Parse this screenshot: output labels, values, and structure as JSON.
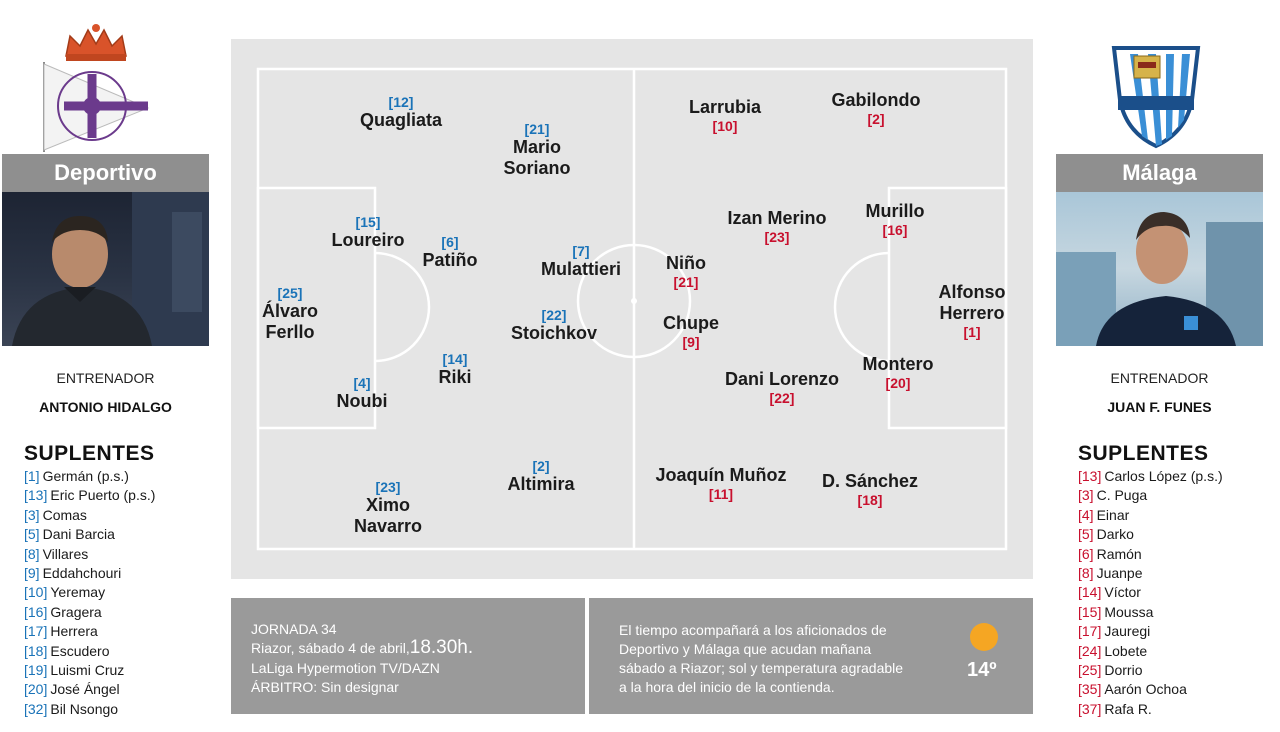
{
  "home": {
    "name": "Deportivo",
    "coach_label": "ENTRENADOR",
    "coach": "ANTONIO HIDALGO",
    "subs_title": "SUPLENTES",
    "subs": [
      {
        "num": "[1]",
        "name": "Germán (p.s.)"
      },
      {
        "num": "[13]",
        "name": "Eric Puerto (p.s.)"
      },
      {
        "num": "[3]",
        "name": "Comas"
      },
      {
        "num": "[5]",
        "name": "Dani Barcia"
      },
      {
        "num": "[8]",
        "name": "Villares"
      },
      {
        "num": "[9]",
        "name": "Eddahchouri"
      },
      {
        "num": "[10]",
        "name": "Yeremay"
      },
      {
        "num": "[16]",
        "name": "Gragera"
      },
      {
        "num": "[17]",
        "name": "Herrera"
      },
      {
        "num": "[18]",
        "name": "Escudero"
      },
      {
        "num": "[19]",
        "name": "Luismi Cruz"
      },
      {
        "num": "[20]",
        "name": "José Ángel"
      },
      {
        "num": "[32]",
        "name": "Bil Nsongo"
      }
    ],
    "lineup": [
      {
        "num": "[12]",
        "name": "Quagliata"
      },
      {
        "num": "[21]",
        "name": "Mario Soriano"
      },
      {
        "num": "[15]",
        "name": "Loureiro"
      },
      {
        "num": "[6]",
        "name": "Patiño"
      },
      {
        "num": "[25]",
        "name": "Álvaro Ferllo"
      },
      {
        "num": "[7]",
        "name": "Mulattieri"
      },
      {
        "num": "[22]",
        "name": "Stoichkov"
      },
      {
        "num": "[14]",
        "name": "Riki"
      },
      {
        "num": "[4]",
        "name": "Noubi"
      },
      {
        "num": "[23]",
        "name": "Ximo Navarro"
      },
      {
        "num": "[2]",
        "name": "Altimira"
      }
    ]
  },
  "away": {
    "name": "Málaga",
    "coach_label": "ENTRENADOR",
    "coach": "JUAN F. FUNES",
    "subs_title": "SUPLENTES",
    "subs": [
      {
        "num": "[13]",
        "name": "Carlos López (p.s.)"
      },
      {
        "num": "[3]",
        "name": "C. Puga"
      },
      {
        "num": "[4]",
        "name": "Einar"
      },
      {
        "num": "[5]",
        "name": "Darko"
      },
      {
        "num": "[6]",
        "name": "Ramón"
      },
      {
        "num": "[8]",
        "name": "Juanpe"
      },
      {
        "num": "[14]",
        "name": "Víctor"
      },
      {
        "num": "[15]",
        "name": "Moussa"
      },
      {
        "num": "[17]",
        "name": "Jauregi"
      },
      {
        "num": "[24]",
        "name": "Lobete"
      },
      {
        "num": "[25]",
        "name": "Dorrio"
      },
      {
        "num": "[35]",
        "name": "Aarón Ochoa"
      },
      {
        "num": "[37]",
        "name": "Rafa R."
      }
    ],
    "lineup": [
      {
        "num": "[10]",
        "name": "Larrubia"
      },
      {
        "num": "[2]",
        "name": "Gabilondo"
      },
      {
        "num": "[23]",
        "name": "Izan Merino"
      },
      {
        "num": "[16]",
        "name": "Murillo"
      },
      {
        "num": "[21]",
        "name": "Niño"
      },
      {
        "num": "[9]",
        "name": "Chupe"
      },
      {
        "num": "[1]",
        "name": "Alfonso Herrero"
      },
      {
        "num": "[22]",
        "name": "Dani Lorenzo"
      },
      {
        "num": "[20]",
        "name": "Montero"
      },
      {
        "num": "[11]",
        "name": "Joaquín Muñoz"
      },
      {
        "num": "[18]",
        "name": "D. Sánchez"
      }
    ]
  },
  "match": {
    "round": "JORNADA 34",
    "venue_date": "Riazor, sábado 4 de abril,",
    "time": "18.30h.",
    "tv": "LaLiga Hypermotion TV/DAZN",
    "referee": "ÁRBITRO: Sin designar"
  },
  "weather": {
    "text_lines": [
      "El tiempo acompañará a los aficionados de",
      "Deportivo y Málaga que acudan mañana",
      "sábado a Riazor; sol y temperatura agradable",
      "a la hora del inicio de la contienda."
    ],
    "temp": "14º",
    "icon": "sun-icon",
    "sun_color": "#f5a623"
  },
  "colors": {
    "home_number": "#1a73b8",
    "away_number": "#c8102e",
    "panel_gray": "#9a9a9a",
    "pitch_bg": "#e5e5e5"
  }
}
